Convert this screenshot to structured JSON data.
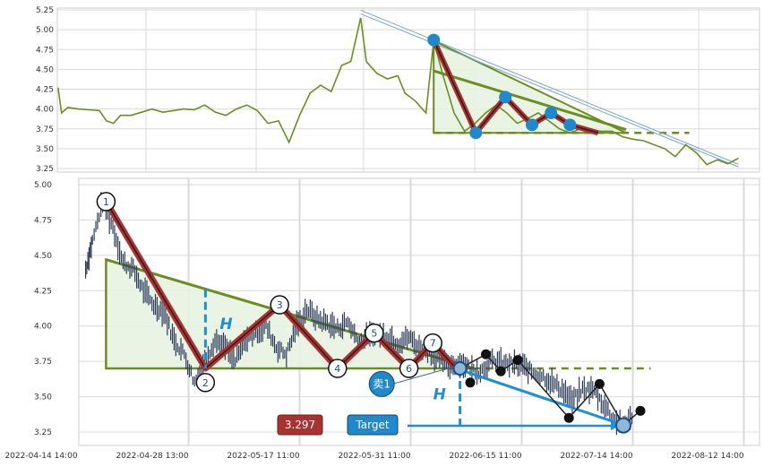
{
  "chart_data": {
    "type": "line",
    "title": "",
    "colors": {
      "line": "#6b8e23",
      "candle": "#2f3e5c",
      "pattern_fill": "#e6f2e0",
      "pattern_line": "#6b8e23",
      "zigzag": "#b03030",
      "marker_blue": "#2288cc",
      "marker_black": "#111111",
      "target_line": "#1f8fd0",
      "grid": "#d9d9d9"
    },
    "x_tick_labels": [
      "2022-04-14 14:00",
      "2022-04-28 13:00",
      "2022-05-17 11:00",
      "2022-05-31 11:00",
      "2022-06-15 11:00",
      "2022-07-14 14:00",
      "2022-08-12 14:00"
    ],
    "overview_panel": {
      "ylim": [
        3.22,
        5.25
      ],
      "y_ticks": [
        "5.25",
        "5.00",
        "4.75",
        "4.50",
        "4.25",
        "4.00",
        "3.75",
        "3.50",
        "3.25"
      ],
      "price_series": [
        [
          0.1,
          4.27
        ],
        [
          0.6,
          3.95
        ],
        [
          1.5,
          4.02
        ],
        [
          3,
          4.0
        ],
        [
          4.5,
          3.99
        ],
        [
          6,
          3.98
        ],
        [
          7,
          3.85
        ],
        [
          8,
          3.82
        ],
        [
          9,
          3.92
        ],
        [
          10.5,
          3.92
        ],
        [
          12,
          3.96
        ],
        [
          13.5,
          4.0
        ],
        [
          15,
          3.96
        ],
        [
          16.5,
          3.98
        ],
        [
          18,
          4.0
        ],
        [
          19.5,
          3.99
        ],
        [
          21,
          4.05
        ],
        [
          22.5,
          3.96
        ],
        [
          24,
          3.92
        ],
        [
          25.5,
          4.0
        ],
        [
          27,
          4.05
        ],
        [
          28.5,
          3.98
        ],
        [
          30,
          3.82
        ],
        [
          31.5,
          3.85
        ],
        [
          33,
          3.58
        ],
        [
          34.5,
          3.92
        ],
        [
          36,
          4.2
        ],
        [
          37.5,
          4.3
        ],
        [
          39,
          4.22
        ],
        [
          40.5,
          4.55
        ],
        [
          41.8,
          4.6
        ],
        [
          43.2,
          5.15
        ],
        [
          44,
          4.6
        ],
        [
          45.5,
          4.45
        ],
        [
          47,
          4.38
        ],
        [
          48.5,
          4.42
        ],
        [
          49.5,
          4.2
        ],
        [
          51,
          4.1
        ],
        [
          52.5,
          3.95
        ],
        [
          53.6,
          4.86
        ],
        [
          55,
          4.4
        ],
        [
          56.5,
          3.95
        ],
        [
          58,
          3.72
        ],
        [
          59.5,
          3.82
        ],
        [
          61,
          3.95
        ],
        [
          62.5,
          4.05
        ],
        [
          64,
          3.95
        ],
        [
          65.5,
          3.82
        ],
        [
          67,
          3.88
        ],
        [
          68.5,
          3.95
        ],
        [
          70,
          3.85
        ],
        [
          71.5,
          3.75
        ],
        [
          73,
          3.7
        ],
        [
          74.5,
          3.75
        ],
        [
          76,
          3.73
        ],
        [
          77.5,
          3.72
        ],
        [
          79,
          3.72
        ],
        [
          80.5,
          3.65
        ],
        [
          82,
          3.62
        ],
        [
          83.5,
          3.6
        ],
        [
          85,
          3.55
        ],
        [
          86.5,
          3.5
        ],
        [
          88,
          3.4
        ],
        [
          89.5,
          3.55
        ],
        [
          91,
          3.45
        ],
        [
          92.5,
          3.3
        ],
        [
          94,
          3.36
        ],
        [
          95.5,
          3.31
        ],
        [
          97,
          3.38
        ]
      ],
      "pattern_polygon": [
        [
          53.6,
          4.86
        ],
        [
          53.6,
          3.7
        ],
        [
          81,
          3.7
        ]
      ],
      "resistance_line": [
        [
          53.6,
          4.48
        ],
        [
          81,
          3.74
        ]
      ],
      "support_dashed": [
        [
          53.6,
          3.7
        ],
        [
          90,
          3.7
        ]
      ],
      "zigzag": [
        [
          53.6,
          4.87
        ],
        [
          59.6,
          3.7
        ],
        [
          63.8,
          4.15
        ],
        [
          67.6,
          3.8
        ],
        [
          70.3,
          3.95
        ],
        [
          73,
          3.8
        ],
        [
          77,
          3.7
        ]
      ],
      "markers": [
        [
          53.6,
          4.87
        ],
        [
          59.6,
          3.7
        ],
        [
          63.8,
          4.15
        ],
        [
          67.6,
          3.8
        ],
        [
          70.3,
          3.95
        ],
        [
          73,
          3.8
        ]
      ],
      "trend_channel": [
        [
          43.2,
          5.2
        ],
        [
          97,
          3.27
        ]
      ]
    },
    "detail_panel": {
      "ylim": [
        3.2,
        5.02
      ],
      "y_ticks": [
        "5.00",
        "4.75",
        "4.50",
        "4.25",
        "4.00",
        "3.75",
        "3.50",
        "3.25"
      ],
      "candle_series": [
        [
          1,
          4.4
        ],
        [
          2,
          4.6
        ],
        [
          3.5,
          4.88
        ],
        [
          5,
          4.7
        ],
        [
          6.5,
          4.45
        ],
        [
          8,
          4.4
        ],
        [
          9.5,
          4.25
        ],
        [
          11,
          4.15
        ],
        [
          12.5,
          4.1
        ],
        [
          14,
          3.9
        ],
        [
          15.5,
          3.8
        ],
        [
          17,
          3.6
        ],
        [
          18.5,
          3.75
        ],
        [
          20,
          3.9
        ],
        [
          21.5,
          3.85
        ],
        [
          23,
          3.75
        ],
        [
          24.5,
          3.9
        ],
        [
          26,
          3.95
        ],
        [
          27.5,
          4.0
        ],
        [
          29,
          3.85
        ],
        [
          30.5,
          3.8
        ],
        [
          32,
          4.0
        ],
        [
          33.5,
          4.12
        ],
        [
          35,
          4.05
        ],
        [
          36.5,
          4.02
        ],
        [
          38,
          3.98
        ],
        [
          39.5,
          4.03
        ],
        [
          41,
          3.9
        ],
        [
          42.5,
          3.92
        ],
        [
          44,
          3.95
        ],
        [
          45.5,
          3.93
        ],
        [
          47,
          3.88
        ],
        [
          48.5,
          3.92
        ],
        [
          50,
          3.85
        ],
        [
          51.5,
          3.82
        ],
        [
          53,
          3.75
        ],
        [
          54.5,
          3.72
        ],
        [
          56,
          3.75
        ],
        [
          57.5,
          3.7
        ],
        [
          59,
          3.68
        ],
        [
          60.5,
          3.75
        ],
        [
          62,
          3.74
        ],
        [
          63.5,
          3.73
        ],
        [
          65,
          3.72
        ],
        [
          66.5,
          3.68
        ],
        [
          68,
          3.65
        ],
        [
          69.5,
          3.6
        ],
        [
          71,
          3.55
        ],
        [
          72.5,
          3.47
        ],
        [
          74,
          3.55
        ],
        [
          75.5,
          3.55
        ],
        [
          77,
          3.45
        ],
        [
          78.5,
          3.35
        ],
        [
          80,
          3.3
        ],
        [
          81.5,
          3.38
        ]
      ],
      "pattern_polygon": [
        [
          4,
          4.47
        ],
        [
          4,
          3.7
        ],
        [
          58,
          3.7
        ]
      ],
      "resistance_line": [
        [
          4,
          4.47
        ],
        [
          58,
          3.7
        ]
      ],
      "support_dashed": [
        [
          58,
          3.7
        ],
        [
          84,
          3.7
        ]
      ],
      "zigzag": [
        [
          4,
          4.88
        ],
        [
          18.6,
          3.7
        ],
        [
          29.5,
          4.15
        ],
        [
          38,
          3.7
        ],
        [
          43.4,
          3.95
        ],
        [
          48.5,
          3.7
        ],
        [
          52,
          3.88
        ],
        [
          56,
          3.67
        ]
      ],
      "pivots": [
        {
          "label": "1",
          "x": 4,
          "y": 4.88
        },
        {
          "label": "2",
          "x": 18.6,
          "y": 3.6
        },
        {
          "label": "3",
          "x": 29.5,
          "y": 4.15
        },
        {
          "label": "4",
          "x": 38,
          "y": 3.7
        },
        {
          "label": "5",
          "x": 43.4,
          "y": 3.95
        },
        {
          "label": "6",
          "x": 48.5,
          "y": 3.7
        },
        {
          "label": "7",
          "x": 52,
          "y": 3.88
        }
      ],
      "height_markers": [
        {
          "label": "H",
          "x": 18.6,
          "y_from": 4.26,
          "y_to": 3.7
        },
        {
          "label": "H",
          "x": 56,
          "y_from": 3.7,
          "y_to": 3.26
        }
      ],
      "sell_marker": {
        "label": "卖1",
        "x": 56,
        "y": 3.7,
        "label_x": 44.5,
        "label_y": 3.59
      },
      "target_marker": {
        "x": 80,
        "y": 3.297
      },
      "black_path": [
        [
          56,
          3.7
        ],
        [
          59.8,
          3.8
        ],
        [
          62,
          3.68
        ],
        [
          64.5,
          3.76
        ],
        [
          72,
          3.35
        ],
        [
          76.5,
          3.59
        ],
        [
          80,
          3.3
        ],
        [
          82.5,
          3.4
        ]
      ],
      "black_points": [
        [
          57.5,
          3.6
        ],
        [
          59.8,
          3.8
        ],
        [
          62,
          3.68
        ],
        [
          64.5,
          3.76
        ],
        [
          72,
          3.35
        ],
        [
          76.5,
          3.59
        ],
        [
          82.5,
          3.4
        ]
      ],
      "target_line_segments": [
        [
          [
            56,
            3.69
          ],
          [
            80,
            3.3
          ]
        ],
        [
          [
            40,
            3.25
          ],
          [
            80,
            3.25
          ]
        ]
      ],
      "price_badge": {
        "label": "3.297",
        "color": "#a83232"
      },
      "target_badge": {
        "label": "Target",
        "color": "#2288cc"
      }
    }
  }
}
